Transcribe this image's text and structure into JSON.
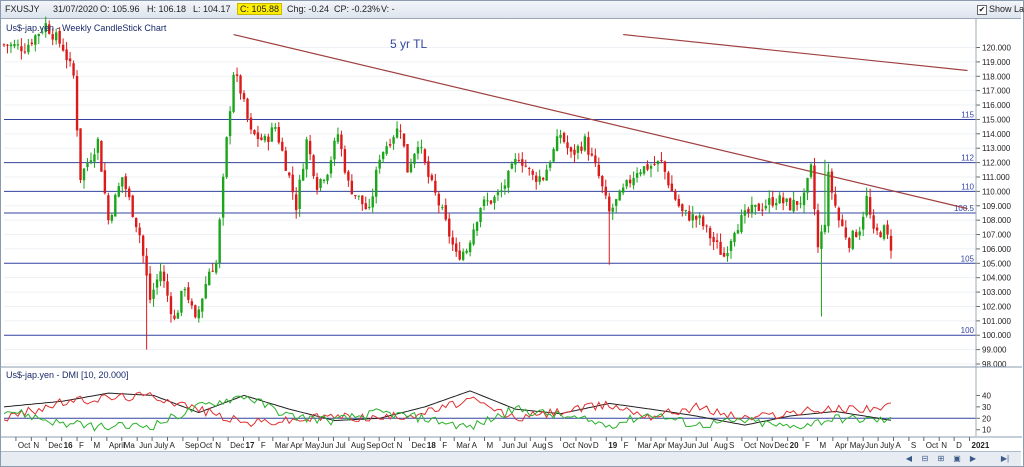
{
  "toolbar": {
    "symbol": "FXUSJY",
    "date": "31/07/2020",
    "open": "O: 105.96",
    "high": "H: 106.18",
    "low": "L: 104.17",
    "close": "C: 105.88",
    "chg": "Chg: -0.24",
    "cp": "CP: -0.23%",
    "volume": "V: -",
    "show_last_label": "Show Last",
    "show_last_checked": true
  },
  "colors": {
    "bull": "#1aa51a",
    "bear": "#dd1a1a",
    "hline": "#3344a0",
    "trendline": "#a04040",
    "di_plus": "#2ab02a",
    "di_minus": "#e03030",
    "adx": "#222222"
  },
  "chart_data": [
    {
      "type": "candlestick",
      "title": "Us$-jap.yen - Weekly CandleStick Chart",
      "annotation": "5 yr TL",
      "ylim": [
        98.0,
        120.8
      ],
      "y_ticks": [
        "120.000",
        "119.000",
        "118.000",
        "117.000",
        "116.000",
        "115.000",
        "114.000",
        "113.000",
        "112.000",
        "111.000",
        "110.000",
        "109.000",
        "108.000",
        "107.000",
        "106.000",
        "105.000",
        "104.000",
        "103.000",
        "102.000",
        "101.000",
        "100.000",
        "99.000",
        "98.000"
      ],
      "horizontal_levels": [
        {
          "label": "115",
          "value": 115.0
        },
        {
          "label": "112",
          "value": 112.0
        },
        {
          "label": "110",
          "value": 110.0
        },
        {
          "label": "108.5",
          "value": 108.5
        },
        {
          "label": "105",
          "value": 105.0
        },
        {
          "label": "100",
          "value": 100.0
        }
      ],
      "trendlines": [
        {
          "from": [
            "2016-12-12",
            120.9
          ],
          "to": [
            "2020-12-28",
            108.8
          ]
        },
        {
          "from": [
            "2019-02-04",
            120.9
          ],
          "to": [
            "2020-12-28",
            118.4
          ]
        }
      ],
      "price_path": [
        [
          "2015-09-07",
          120.2
        ],
        [
          "2015-10-19",
          120.0
        ],
        [
          "2015-11-30",
          121.6
        ],
        [
          "2016-01-04",
          120.0
        ],
        [
          "2016-01-25",
          118.0
        ],
        [
          "2016-02-08",
          111.0
        ],
        [
          "2016-03-14",
          113.5
        ],
        [
          "2016-04-04",
          108.0
        ],
        [
          "2016-05-02",
          111.0
        ],
        [
          "2016-06-06",
          107.0
        ],
        [
          "2016-06-27",
          102.5
        ],
        [
          "2016-07-18",
          104.5
        ],
        [
          "2016-08-15",
          101.0
        ],
        [
          "2016-09-05",
          103.5
        ],
        [
          "2016-09-26",
          100.9
        ],
        [
          "2016-10-24",
          104.5
        ],
        [
          "2016-11-07",
          105.0
        ],
        [
          "2016-11-28",
          113.5
        ],
        [
          "2016-12-12",
          118.3
        ],
        [
          "2016-12-26",
          117.0
        ],
        [
          "2017-01-16",
          114.0
        ],
        [
          "2017-02-13",
          113.5
        ],
        [
          "2017-03-06",
          114.5
        ],
        [
          "2017-04-03",
          111.0
        ],
        [
          "2017-04-17",
          109.0
        ],
        [
          "2017-05-08",
          113.5
        ],
        [
          "2017-05-29",
          110.5
        ],
        [
          "2017-06-19",
          111.5
        ],
        [
          "2017-07-10",
          114.0
        ],
        [
          "2017-07-31",
          110.5
        ],
        [
          "2017-08-21",
          109.5
        ],
        [
          "2017-09-11",
          108.5
        ],
        [
          "2017-10-02",
          112.5
        ],
        [
          "2017-10-30",
          114.0
        ],
        [
          "2017-11-13",
          114.5
        ],
        [
          "2017-11-27",
          111.5
        ],
        [
          "2017-12-18",
          113.5
        ],
        [
          "2018-01-08",
          111.0
        ],
        [
          "2018-02-05",
          108.5
        ],
        [
          "2018-03-05",
          105.5
        ],
        [
          "2018-03-26",
          106.0
        ],
        [
          "2018-04-23",
          109.0
        ],
        [
          "2018-05-21",
          109.5
        ],
        [
          "2018-06-04",
          110.0
        ],
        [
          "2018-07-09",
          112.5
        ],
        [
          "2018-08-06",
          111.0
        ],
        [
          "2018-08-27",
          111.0
        ],
        [
          "2018-10-01",
          114.0
        ],
        [
          "2018-10-22",
          112.5
        ],
        [
          "2018-11-19",
          113.5
        ],
        [
          "2018-12-17",
          111.0
        ],
        [
          "2019-01-07",
          108.5
        ],
        [
          "2019-02-04",
          110.0
        ],
        [
          "2019-03-04",
          111.5
        ],
        [
          "2019-04-22",
          112.0
        ],
        [
          "2019-05-13",
          110.0
        ],
        [
          "2019-06-03",
          108.5
        ],
        [
          "2019-07-08",
          108.0
        ],
        [
          "2019-08-05",
          106.5
        ],
        [
          "2019-08-26",
          105.5
        ],
        [
          "2019-09-16",
          107.5
        ],
        [
          "2019-10-14",
          108.5
        ],
        [
          "2019-11-11",
          109.0
        ],
        [
          "2019-12-09",
          109.5
        ],
        [
          "2020-01-06",
          109.0
        ],
        [
          "2020-02-03",
          109.5
        ],
        [
          "2020-02-17",
          111.5
        ],
        [
          "2020-03-02",
          106.0
        ],
        [
          "2020-03-16",
          108.0
        ],
        [
          "2020-03-23",
          111.0
        ],
        [
          "2020-04-13",
          108.0
        ],
        [
          "2020-05-04",
          106.5
        ],
        [
          "2020-05-25",
          107.5
        ],
        [
          "2020-06-08",
          109.5
        ],
        [
          "2020-06-22",
          107.0
        ],
        [
          "2020-07-13",
          107.3
        ],
        [
          "2020-07-31",
          105.9
        ]
      ],
      "extreme_wicks": [
        {
          "date": "2016-06-20",
          "low": 99.0
        },
        {
          "date": "2019-01-07",
          "low": 104.9
        },
        {
          "date": "2020-03-09",
          "low": 101.3
        },
        {
          "date": "2020-03-16",
          "high": 112.2
        }
      ]
    },
    {
      "type": "line",
      "title": "Us$-jap.yen - DMI [10, 20.000]",
      "ylim": [
        8,
        50
      ],
      "y_ticks": [
        "40",
        "30",
        "20",
        "10"
      ],
      "reference_level": 20,
      "series": [
        {
          "name": "",
          "color": "#222222",
          "x": [
            "2015-09-07",
            "2016-01-04",
            "2016-04-04",
            "2016-07-04",
            "2016-10-03",
            "2017-01-02",
            "2017-04-03",
            "2017-07-03",
            "2017-10-02",
            "2018-01-01",
            "2018-04-02",
            "2018-07-02",
            "2018-10-01",
            "2019-01-07",
            "2019-04-01",
            "2019-07-01",
            "2019-10-07",
            "2020-01-06",
            "2020-04-06",
            "2020-07-31"
          ],
          "values": [
            30,
            35,
            42,
            40,
            25,
            40,
            28,
            18,
            20,
            30,
            44,
            28,
            24,
            33,
            28,
            22,
            14,
            22,
            26,
            18
          ]
        },
        {
          "name": "",
          "color": "#e03030",
          "x": [
            "2015-09-07",
            "2016-01-04",
            "2016-04-04",
            "2016-07-04",
            "2016-10-03",
            "2017-01-02",
            "2017-04-03",
            "2017-07-03",
            "2017-10-02",
            "2018-01-01",
            "2018-04-02",
            "2018-07-02",
            "2018-10-01",
            "2019-01-07",
            "2019-04-01",
            "2019-07-01",
            "2019-10-07",
            "2020-01-06",
            "2020-04-06",
            "2020-07-31"
          ],
          "values": [
            20,
            34,
            38,
            40,
            28,
            16,
            18,
            22,
            20,
            25,
            36,
            20,
            26,
            32,
            22,
            30,
            20,
            25,
            28,
            30
          ]
        },
        {
          "name": "",
          "color": "#2ab02a",
          "x": [
            "2015-09-07",
            "2016-01-04",
            "2016-04-04",
            "2016-07-04",
            "2016-10-03",
            "2017-01-02",
            "2017-04-03",
            "2017-07-03",
            "2017-10-02",
            "2018-01-01",
            "2018-04-02",
            "2018-07-02",
            "2018-10-01",
            "2019-01-07",
            "2019-04-01",
            "2019-07-01",
            "2019-10-07",
            "2020-01-06",
            "2020-04-06",
            "2020-07-31"
          ],
          "values": [
            28,
            15,
            12,
            14,
            30,
            40,
            22,
            18,
            25,
            20,
            12,
            28,
            22,
            14,
            24,
            14,
            18,
            12,
            20,
            18
          ]
        }
      ]
    }
  ],
  "x_axis": {
    "labels": [
      {
        "date": "2015-10-01",
        "text": "Oct"
      },
      {
        "date": "2015-11-01",
        "text": "N"
      },
      {
        "date": "2015-12-01",
        "text": "Dec"
      },
      {
        "date": "2016-01-01",
        "text": "16",
        "bold": true
      },
      {
        "date": "2016-02-01",
        "text": "F"
      },
      {
        "date": "2016-03-01",
        "text": "M"
      },
      {
        "date": "2016-04-01",
        "text": "April"
      },
      {
        "date": "2016-05-01",
        "text": "Ma"
      },
      {
        "date": "2016-06-01",
        "text": "Jun"
      },
      {
        "date": "2016-07-01",
        "text": "July"
      },
      {
        "date": "2016-08-01",
        "text": "A"
      },
      {
        "date": "2016-09-01",
        "text": "Sep"
      },
      {
        "date": "2016-10-01",
        "text": "Oct"
      },
      {
        "date": "2016-11-01",
        "text": "N"
      },
      {
        "date": "2016-12-01",
        "text": "Dec"
      },
      {
        "date": "2017-01-01",
        "text": "17",
        "bold": true
      },
      {
        "date": "2017-02-01",
        "text": "F"
      },
      {
        "date": "2017-03-01",
        "text": "Mar"
      },
      {
        "date": "2017-04-01",
        "text": "Apr"
      },
      {
        "date": "2017-05-01",
        "text": "May"
      },
      {
        "date": "2017-06-01",
        "text": "Jun"
      },
      {
        "date": "2017-07-01",
        "text": "Jul"
      },
      {
        "date": "2017-08-01",
        "text": "Aug"
      },
      {
        "date": "2017-09-01",
        "text": "Sep"
      },
      {
        "date": "2017-10-01",
        "text": "Oct"
      },
      {
        "date": "2017-11-01",
        "text": "N"
      },
      {
        "date": "2017-12-01",
        "text": "Dec"
      },
      {
        "date": "2018-01-01",
        "text": "18",
        "bold": true
      },
      {
        "date": "2018-02-01",
        "text": "F"
      },
      {
        "date": "2018-03-01",
        "text": "Mar"
      },
      {
        "date": "2018-04-01",
        "text": "A"
      },
      {
        "date": "2018-05-01",
        "text": "M"
      },
      {
        "date": "2018-06-01",
        "text": "Jun"
      },
      {
        "date": "2018-07-01",
        "text": "Jul"
      },
      {
        "date": "2018-08-01",
        "text": "Aug"
      },
      {
        "date": "2018-09-01",
        "text": "S"
      },
      {
        "date": "2018-10-01",
        "text": "Oct"
      },
      {
        "date": "2018-11-01",
        "text": "Nov"
      },
      {
        "date": "2018-12-01",
        "text": "D"
      },
      {
        "date": "2019-01-01",
        "text": "19",
        "bold": true
      },
      {
        "date": "2019-02-01",
        "text": "F"
      },
      {
        "date": "2019-03-01",
        "text": "Mar"
      },
      {
        "date": "2019-04-01",
        "text": "Apr"
      },
      {
        "date": "2019-05-01",
        "text": "May"
      },
      {
        "date": "2019-06-01",
        "text": "Jun"
      },
      {
        "date": "2019-07-01",
        "text": "Jul"
      },
      {
        "date": "2019-08-01",
        "text": "Aug"
      },
      {
        "date": "2019-09-01",
        "text": "S"
      },
      {
        "date": "2019-10-01",
        "text": "Oct"
      },
      {
        "date": "2019-11-01",
        "text": "Nov"
      },
      {
        "date": "2019-12-01",
        "text": "Dec"
      },
      {
        "date": "2020-01-01",
        "text": "20",
        "bold": true
      },
      {
        "date": "2020-02-01",
        "text": "F"
      },
      {
        "date": "2020-03-01",
        "text": "M"
      },
      {
        "date": "2020-04-01",
        "text": "Apr"
      },
      {
        "date": "2020-05-01",
        "text": "May"
      },
      {
        "date": "2020-06-01",
        "text": "Jun"
      },
      {
        "date": "2020-07-01",
        "text": "July"
      },
      {
        "date": "2020-08-01",
        "text": "A"
      },
      {
        "date": "2020-09-01",
        "text": "S"
      },
      {
        "date": "2020-10-01",
        "text": "Oct"
      },
      {
        "date": "2020-11-01",
        "text": "N"
      },
      {
        "date": "2020-12-01",
        "text": "D"
      },
      {
        "date": "2021-01-01",
        "text": "2021",
        "bold": true
      }
    ]
  }
}
